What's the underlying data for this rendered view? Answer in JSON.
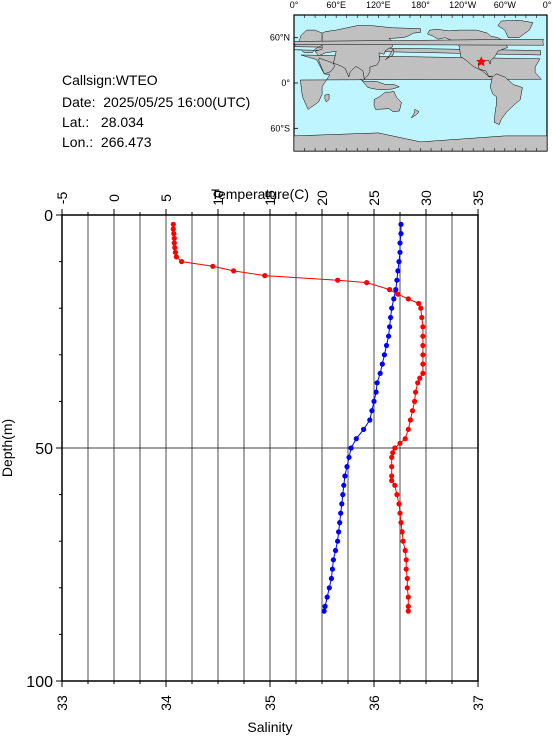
{
  "header": {
    "callsign_label": "Callsign:WTEO",
    "date_label": "Date:  2025/05/25 16:00(UTC)",
    "lat_label": "Lat.:   28.034",
    "lon_label": "Lon.:  266.473"
  },
  "map": {
    "lon_ticks": [
      "0°",
      "60°E",
      "120°E",
      "180°",
      "120°W",
      "60°W",
      "0°"
    ],
    "lat_ticks": [
      "60°N",
      "0°",
      "60°S"
    ],
    "marker_lon": 266.473,
    "marker_lat": 28.034,
    "ocean_color": "#bff5ff",
    "land_color": "#c0c0c0",
    "marker_color": "#ff0000"
  },
  "chart_data": {
    "type": "line",
    "top_axis_label": "Temperature(C)",
    "bottom_axis_label": "Salinity",
    "y_axis_label": "Depth(m)",
    "temperature_ticks": [
      "-5",
      "0",
      "5",
      "10",
      "15",
      "20",
      "25",
      "30",
      "35"
    ],
    "salinity_ticks": [
      "33",
      "34",
      "35",
      "36",
      "37"
    ],
    "depth_ticks": [
      "0",
      "50",
      "100"
    ],
    "temperature_range": [
      -5,
      35
    ],
    "salinity_range": [
      33,
      37
    ],
    "depth_range": [
      0,
      100
    ],
    "series": [
      {
        "quantity": "temperature",
        "color": "#ff0000",
        "points": [
          [
            5.7,
            2
          ],
          [
            5.7,
            3
          ],
          [
            5.75,
            4
          ],
          [
            5.8,
            5
          ],
          [
            5.8,
            6
          ],
          [
            5.85,
            7
          ],
          [
            5.9,
            8
          ],
          [
            6.0,
            9
          ],
          [
            6.5,
            10
          ],
          [
            9.5,
            11
          ],
          [
            11.5,
            12
          ],
          [
            14.5,
            13
          ],
          [
            21.5,
            14
          ],
          [
            24.3,
            14.5
          ],
          [
            26.5,
            16
          ],
          [
            27.3,
            17
          ],
          [
            28.3,
            18
          ],
          [
            29.3,
            19
          ],
          [
            29.5,
            20
          ],
          [
            29.6,
            22
          ],
          [
            29.7,
            24
          ],
          [
            29.7,
            26
          ],
          [
            29.7,
            28
          ],
          [
            29.7,
            30
          ],
          [
            29.7,
            32
          ],
          [
            29.7,
            34
          ],
          [
            29.4,
            35
          ],
          [
            29.2,
            36
          ],
          [
            29.0,
            38
          ],
          [
            28.9,
            40
          ],
          [
            28.7,
            42
          ],
          [
            28.5,
            44
          ],
          [
            28.3,
            46
          ],
          [
            28.0,
            48
          ],
          [
            27.5,
            49
          ],
          [
            27.0,
            50
          ],
          [
            26.8,
            51
          ],
          [
            26.7,
            52
          ],
          [
            26.7,
            54
          ],
          [
            26.7,
            56
          ],
          [
            26.7,
            57
          ],
          [
            27.0,
            58
          ],
          [
            27.2,
            60
          ],
          [
            27.4,
            62
          ],
          [
            27.5,
            64
          ],
          [
            27.6,
            66
          ],
          [
            27.7,
            68
          ],
          [
            27.8,
            70
          ],
          [
            28.0,
            72
          ],
          [
            28.1,
            74
          ],
          [
            28.1,
            76
          ],
          [
            28.2,
            78
          ],
          [
            28.2,
            80
          ],
          [
            28.3,
            82
          ],
          [
            28.3,
            84
          ],
          [
            28.3,
            85
          ]
        ]
      },
      {
        "quantity": "salinity",
        "color": "#0000ff",
        "points": [
          [
            36.26,
            2
          ],
          [
            36.26,
            4
          ],
          [
            36.25,
            6
          ],
          [
            36.25,
            8
          ],
          [
            36.24,
            10
          ],
          [
            36.23,
            12
          ],
          [
            36.22,
            14
          ],
          [
            36.21,
            16
          ],
          [
            36.19,
            18
          ],
          [
            36.17,
            20
          ],
          [
            36.16,
            22
          ],
          [
            36.15,
            24
          ],
          [
            36.14,
            26
          ],
          [
            36.12,
            28
          ],
          [
            36.1,
            30
          ],
          [
            36.08,
            32
          ],
          [
            36.06,
            34
          ],
          [
            36.03,
            36
          ],
          [
            36.02,
            38
          ],
          [
            36.0,
            40
          ],
          [
            35.98,
            42
          ],
          [
            35.96,
            44
          ],
          [
            35.9,
            46
          ],
          [
            35.83,
            48
          ],
          [
            35.78,
            50
          ],
          [
            35.76,
            52
          ],
          [
            35.74,
            54
          ],
          [
            35.72,
            56
          ],
          [
            35.71,
            58
          ],
          [
            35.7,
            60
          ],
          [
            35.69,
            62
          ],
          [
            35.68,
            64
          ],
          [
            35.67,
            66
          ],
          [
            35.66,
            68
          ],
          [
            35.65,
            70
          ],
          [
            35.63,
            72
          ],
          [
            35.61,
            74
          ],
          [
            35.6,
            76
          ],
          [
            35.59,
            78
          ],
          [
            35.57,
            80
          ],
          [
            35.55,
            82
          ],
          [
            35.53,
            84
          ],
          [
            35.52,
            85
          ]
        ]
      }
    ]
  }
}
